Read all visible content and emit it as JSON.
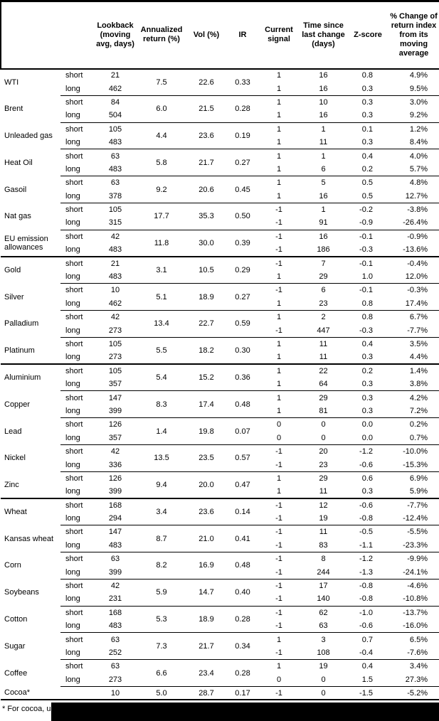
{
  "table": {
    "columns": [
      {
        "key": "commodity",
        "label": ""
      },
      {
        "key": "horizon",
        "label": ""
      },
      {
        "key": "lookback",
        "label": "Lookback (moving avg, days)"
      },
      {
        "key": "annualized-return",
        "label": "Annualized return (%)"
      },
      {
        "key": "vol",
        "label": "Vol (%)"
      },
      {
        "key": "ir",
        "label": "IR"
      },
      {
        "key": "current-signal",
        "label": "Current signal"
      },
      {
        "key": "time-since-last-change",
        "label": "Time since last change (days)"
      },
      {
        "key": "z-score",
        "label": "Z-score"
      },
      {
        "key": "pct-change",
        "label": "% Change of return index from its moving average"
      }
    ],
    "commodities": [
      {
        "name": "WTI",
        "section_start": false,
        "annualized_return": "7.5",
        "vol": "22.6",
        "ir": "0.33",
        "rows": [
          {
            "horizon": "short",
            "lookback": "21",
            "signal": "1",
            "time_since": "16",
            "z_score": "0.8",
            "pct_change": "4.9%"
          },
          {
            "horizon": "long",
            "lookback": "462",
            "signal": "1",
            "time_since": "16",
            "z_score": "0.3",
            "pct_change": "9.5%"
          }
        ]
      },
      {
        "name": "Brent",
        "section_start": false,
        "annualized_return": "6.0",
        "vol": "21.5",
        "ir": "0.28",
        "rows": [
          {
            "horizon": "short",
            "lookback": "84",
            "signal": "1",
            "time_since": "10",
            "z_score": "0.3",
            "pct_change": "3.0%"
          },
          {
            "horizon": "long",
            "lookback": "504",
            "signal": "1",
            "time_since": "16",
            "z_score": "0.3",
            "pct_change": "9.2%"
          }
        ]
      },
      {
        "name": "Unleaded gas",
        "section_start": false,
        "annualized_return": "4.4",
        "vol": "23.6",
        "ir": "0.19",
        "rows": [
          {
            "horizon": "short",
            "lookback": "105",
            "signal": "1",
            "time_since": "1",
            "z_score": "0.1",
            "pct_change": "1.2%"
          },
          {
            "horizon": "long",
            "lookback": "483",
            "signal": "1",
            "time_since": "11",
            "z_score": "0.3",
            "pct_change": "8.4%"
          }
        ]
      },
      {
        "name": "Heat Oil",
        "section_start": false,
        "annualized_return": "5.8",
        "vol": "21.7",
        "ir": "0.27",
        "rows": [
          {
            "horizon": "short",
            "lookback": "63",
            "signal": "1",
            "time_since": "1",
            "z_score": "0.4",
            "pct_change": "4.0%"
          },
          {
            "horizon": "long",
            "lookback": "483",
            "signal": "1",
            "time_since": "6",
            "z_score": "0.2",
            "pct_change": "5.7%"
          }
        ]
      },
      {
        "name": "Gasoil",
        "section_start": false,
        "annualized_return": "9.2",
        "vol": "20.6",
        "ir": "0.45",
        "rows": [
          {
            "horizon": "short",
            "lookback": "63",
            "signal": "1",
            "time_since": "5",
            "z_score": "0.5",
            "pct_change": "4.8%"
          },
          {
            "horizon": "long",
            "lookback": "378",
            "signal": "1",
            "time_since": "16",
            "z_score": "0.5",
            "pct_change": "12.7%"
          }
        ]
      },
      {
        "name": "Nat gas",
        "section_start": false,
        "annualized_return": "17.7",
        "vol": "35.3",
        "ir": "0.50",
        "rows": [
          {
            "horizon": "short",
            "lookback": "105",
            "signal": "-1",
            "time_since": "1",
            "z_score": "-0.2",
            "pct_change": "-3.8%"
          },
          {
            "horizon": "long",
            "lookback": "315",
            "signal": "-1",
            "time_since": "91",
            "z_score": "-0.9",
            "pct_change": "-26.4%"
          }
        ]
      },
      {
        "name": "EU emission allowances",
        "section_start": false,
        "annualized_return": "11.8",
        "vol": "30.0",
        "ir": "0.39",
        "rows": [
          {
            "horizon": "short",
            "lookback": "42",
            "signal": "-1",
            "time_since": "16",
            "z_score": "-0.1",
            "pct_change": "-0.9%"
          },
          {
            "horizon": "long",
            "lookback": "483",
            "signal": "-1",
            "time_since": "186",
            "z_score": "-0.3",
            "pct_change": "-13.6%"
          }
        ]
      },
      {
        "name": "Gold",
        "section_start": true,
        "annualized_return": "3.1",
        "vol": "10.5",
        "ir": "0.29",
        "rows": [
          {
            "horizon": "short",
            "lookback": "21",
            "signal": "-1",
            "time_since": "7",
            "z_score": "-0.1",
            "pct_change": "-0.4%"
          },
          {
            "horizon": "long",
            "lookback": "483",
            "signal": "1",
            "time_since": "29",
            "z_score": "1.0",
            "pct_change": "12.0%"
          }
        ]
      },
      {
        "name": "Silver",
        "section_start": false,
        "annualized_return": "5.1",
        "vol": "18.9",
        "ir": "0.27",
        "rows": [
          {
            "horizon": "short",
            "lookback": "10",
            "signal": "-1",
            "time_since": "6",
            "z_score": "-0.1",
            "pct_change": "-0.3%"
          },
          {
            "horizon": "long",
            "lookback": "462",
            "signal": "1",
            "time_since": "23",
            "z_score": "0.8",
            "pct_change": "17.4%"
          }
        ]
      },
      {
        "name": "Palladium",
        "section_start": false,
        "annualized_return": "13.4",
        "vol": "22.7",
        "ir": "0.59",
        "rows": [
          {
            "horizon": "short",
            "lookback": "42",
            "signal": "1",
            "time_since": "2",
            "z_score": "0.8",
            "pct_change": "6.7%"
          },
          {
            "horizon": "long",
            "lookback": "273",
            "signal": "-1",
            "time_since": "447",
            "z_score": "-0.3",
            "pct_change": "-7.7%"
          }
        ]
      },
      {
        "name": "Platinum",
        "section_start": false,
        "annualized_return": "5.5",
        "vol": "18.2",
        "ir": "0.30",
        "rows": [
          {
            "horizon": "short",
            "lookback": "105",
            "signal": "1",
            "time_since": "11",
            "z_score": "0.4",
            "pct_change": "3.5%"
          },
          {
            "horizon": "long",
            "lookback": "273",
            "signal": "1",
            "time_since": "11",
            "z_score": "0.3",
            "pct_change": "4.4%"
          }
        ]
      },
      {
        "name": "Aluminium",
        "section_start": true,
        "annualized_return": "5.4",
        "vol": "15.2",
        "ir": "0.36",
        "rows": [
          {
            "horizon": "short",
            "lookback": "105",
            "signal": "1",
            "time_since": "22",
            "z_score": "0.2",
            "pct_change": "1.4%"
          },
          {
            "horizon": "long",
            "lookback": "357",
            "signal": "1",
            "time_since": "64",
            "z_score": "0.3",
            "pct_change": "3.8%"
          }
        ]
      },
      {
        "name": "Copper",
        "section_start": false,
        "annualized_return": "8.3",
        "vol": "17.4",
        "ir": "0.48",
        "rows": [
          {
            "horizon": "short",
            "lookback": "147",
            "signal": "1",
            "time_since": "29",
            "z_score": "0.3",
            "pct_change": "4.2%"
          },
          {
            "horizon": "long",
            "lookback": "399",
            "signal": "1",
            "time_since": "81",
            "z_score": "0.3",
            "pct_change": "7.2%"
          }
        ]
      },
      {
        "name": "Lead",
        "section_start": false,
        "annualized_return": "1.4",
        "vol": "19.8",
        "ir": "0.07",
        "rows": [
          {
            "horizon": "short",
            "lookback": "126",
            "signal": "0",
            "time_since": "0",
            "z_score": "0.0",
            "pct_change": "0.2%"
          },
          {
            "horizon": "long",
            "lookback": "357",
            "signal": "0",
            "time_since": "0",
            "z_score": "0.0",
            "pct_change": "0.7%"
          }
        ]
      },
      {
        "name": "Nickel",
        "section_start": false,
        "annualized_return": "13.5",
        "vol": "23.5",
        "ir": "0.57",
        "rows": [
          {
            "horizon": "short",
            "lookback": "42",
            "signal": "-1",
            "time_since": "20",
            "z_score": "-1.2",
            "pct_change": "-10.0%"
          },
          {
            "horizon": "long",
            "lookback": "336",
            "signal": "-1",
            "time_since": "23",
            "z_score": "-0.6",
            "pct_change": "-15.3%"
          }
        ]
      },
      {
        "name": "Zinc",
        "section_start": false,
        "annualized_return": "9.4",
        "vol": "20.0",
        "ir": "0.47",
        "rows": [
          {
            "horizon": "short",
            "lookback": "126",
            "signal": "1",
            "time_since": "29",
            "z_score": "0.6",
            "pct_change": "6.9%"
          },
          {
            "horizon": "long",
            "lookback": "399",
            "signal": "1",
            "time_since": "11",
            "z_score": "0.3",
            "pct_change": "5.9%"
          }
        ]
      },
      {
        "name": "Wheat",
        "section_start": true,
        "annualized_return": "3.4",
        "vol": "23.6",
        "ir": "0.14",
        "rows": [
          {
            "horizon": "short",
            "lookback": "168",
            "signal": "-1",
            "time_since": "12",
            "z_score": "-0.6",
            "pct_change": "-7.7%"
          },
          {
            "horizon": "long",
            "lookback": "294",
            "signal": "-1",
            "time_since": "19",
            "z_score": "-0.8",
            "pct_change": "-12.4%"
          }
        ]
      },
      {
        "name": "Kansas wheat",
        "section_start": false,
        "annualized_return": "8.7",
        "vol": "21.0",
        "ir": "0.41",
        "rows": [
          {
            "horizon": "short",
            "lookback": "147",
            "signal": "-1",
            "time_since": "11",
            "z_score": "-0.5",
            "pct_change": "-5.5%"
          },
          {
            "horizon": "long",
            "lookback": "483",
            "signal": "-1",
            "time_since": "83",
            "z_score": "-1.1",
            "pct_change": "-23.3%"
          }
        ]
      },
      {
        "name": "Corn",
        "section_start": false,
        "annualized_return": "8.2",
        "vol": "16.9",
        "ir": "0.48",
        "rows": [
          {
            "horizon": "short",
            "lookback": "63",
            "signal": "-1",
            "time_since": "8",
            "z_score": "-1.2",
            "pct_change": "-9.9%"
          },
          {
            "horizon": "long",
            "lookback": "399",
            "signal": "-1",
            "time_since": "244",
            "z_score": "-1.3",
            "pct_change": "-24.1%"
          }
        ]
      },
      {
        "name": "Soybeans",
        "section_start": false,
        "annualized_return": "5.9",
        "vol": "14.7",
        "ir": "0.40",
        "rows": [
          {
            "horizon": "short",
            "lookback": "42",
            "signal": "-1",
            "time_since": "17",
            "z_score": "-0.8",
            "pct_change": "-4.6%"
          },
          {
            "horizon": "long",
            "lookback": "231",
            "signal": "-1",
            "time_since": "140",
            "z_score": "-0.8",
            "pct_change": "-10.8%"
          }
        ]
      },
      {
        "name": "Cotton",
        "section_start": false,
        "annualized_return": "5.3",
        "vol": "18.9",
        "ir": "0.28",
        "rows": [
          {
            "horizon": "short",
            "lookback": "168",
            "signal": "-1",
            "time_since": "62",
            "z_score": "-1.0",
            "pct_change": "-13.7%"
          },
          {
            "horizon": "long",
            "lookback": "483",
            "signal": "-1",
            "time_since": "63",
            "z_score": "-0.6",
            "pct_change": "-16.0%"
          }
        ]
      },
      {
        "name": "Sugar",
        "section_start": false,
        "annualized_return": "7.3",
        "vol": "21.7",
        "ir": "0.34",
        "rows": [
          {
            "horizon": "short",
            "lookback": "63",
            "signal": "1",
            "time_since": "3",
            "z_score": "0.7",
            "pct_change": "6.5%"
          },
          {
            "horizon": "long",
            "lookback": "252",
            "signal": "-1",
            "time_since": "108",
            "z_score": "-0.4",
            "pct_change": "-7.6%"
          }
        ]
      },
      {
        "name": "Coffee",
        "section_start": false,
        "annualized_return": "6.6",
        "vol": "23.4",
        "ir": "0.28",
        "rows": [
          {
            "horizon": "short",
            "lookback": "63",
            "signal": "1",
            "time_since": "19",
            "z_score": "0.4",
            "pct_change": "3.4%"
          },
          {
            "horizon": "long",
            "lookback": "273",
            "signal": "0",
            "time_since": "0",
            "z_score": "1.5",
            "pct_change": "27.3%"
          }
        ]
      },
      {
        "name": "Cocoa*",
        "section_start": false,
        "annualized_return": "5.0",
        "vol": "28.7",
        "ir": "0.17",
        "rows": [
          {
            "horizon": "",
            "lookback": "10",
            "signal": "-1",
            "time_since": "0",
            "z_score": "-1.5",
            "pct_change": "-5.2%"
          }
        ]
      }
    ]
  },
  "footnote": {
    "text": "* For cocoa, uses c"
  },
  "colors": {
    "text": "#000000",
    "background": "#ffffff",
    "rule": "#000000",
    "redaction": "#000000"
  }
}
